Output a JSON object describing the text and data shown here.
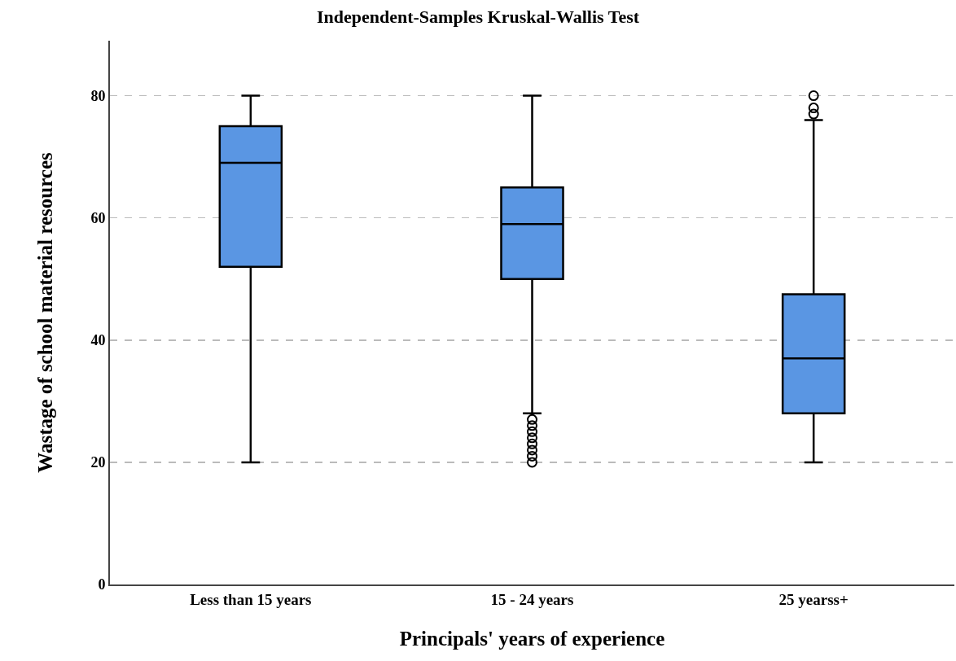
{
  "chart_data": {
    "type": "box",
    "title": "Independent-Samples Kruskal-Wallis Test",
    "xlabel": "Principals' years of experience",
    "ylabel": "Wastage of school material resources",
    "categories": [
      "Less than 15 years",
      "15 - 24 years",
      "25 yearss+"
    ],
    "color": "#5a96e3",
    "boxes": [
      {
        "low": 20,
        "q1": 52,
        "median": 69,
        "q3": 75,
        "high": 80
      },
      {
        "low": 28,
        "q1": 50,
        "median": 59,
        "q3": 65,
        "high": 80,
        "outliers": [
          20,
          21,
          22,
          23,
          24,
          25,
          26,
          27
        ]
      },
      {
        "low": 20,
        "q1": 28,
        "median": 37,
        "q3": 47.5,
        "high": 76,
        "outliers": [
          77,
          78,
          80
        ]
      }
    ],
    "ylim": [
      0,
      89
    ],
    "yticks": [
      0,
      20,
      40,
      60,
      80
    ],
    "grid": "y",
    "marker": "circle"
  }
}
